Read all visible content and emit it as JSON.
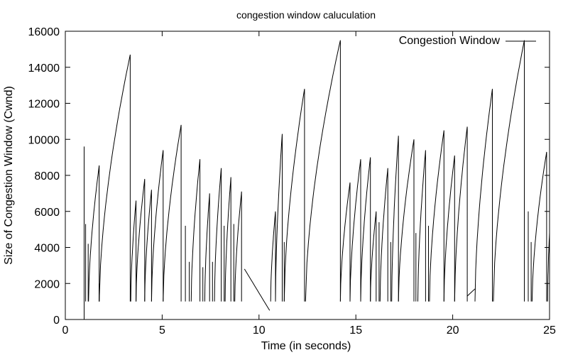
{
  "chart_data": {
    "type": "line",
    "title": "congestion window caluculation",
    "xlabel": "Time (in seconds)",
    "ylabel": "Size of Congestion Window (Cwnd)",
    "xlim": [
      0,
      25
    ],
    "ylim": [
      0,
      16000
    ],
    "xticks": [
      0,
      5,
      10,
      15,
      20,
      25
    ],
    "yticks": [
      0,
      2000,
      4000,
      6000,
      8000,
      10000,
      12000,
      14000,
      16000
    ],
    "grid": false,
    "legend_position": "top-right",
    "series": [
      {
        "name": "Congestion Window",
        "color": "#000000",
        "segments": [
          {
            "kind": "spike",
            "t": 0.97,
            "peak": 9600,
            "base": 0
          },
          {
            "kind": "spike",
            "t": 1.05,
            "peak": 5300,
            "base": 1000
          },
          {
            "kind": "spike",
            "t": 1.18,
            "peak": 4200,
            "base": 1000
          },
          {
            "kind": "ramp",
            "t0": 1.2,
            "t1": 1.75,
            "v0": 1000,
            "v1": 8550
          },
          {
            "kind": "spike",
            "t": 1.75,
            "peak": 2000,
            "base": 1000
          },
          {
            "kind": "ramp",
            "t0": 1.75,
            "t1": 3.35,
            "v0": 1000,
            "v1": 14700
          },
          {
            "kind": "ramp",
            "t0": 3.38,
            "t1": 3.65,
            "v0": 1000,
            "v1": 6600
          },
          {
            "kind": "ramp",
            "t0": 3.65,
            "t1": 4.1,
            "v0": 1000,
            "v1": 7800
          },
          {
            "kind": "ramp",
            "t0": 4.1,
            "t1": 4.45,
            "v0": 1000,
            "v1": 7200
          },
          {
            "kind": "ramp",
            "t0": 4.45,
            "t1": 5.05,
            "v0": 1000,
            "v1": 9400
          },
          {
            "kind": "ramp",
            "t0": 5.05,
            "t1": 5.98,
            "v0": 1000,
            "v1": 10800
          },
          {
            "kind": "spike",
            "t": 6.2,
            "peak": 5200,
            "base": 1000
          },
          {
            "kind": "spike",
            "t": 6.4,
            "peak": 3200,
            "base": 1000
          },
          {
            "kind": "ramp",
            "t0": 6.5,
            "t1": 6.95,
            "v0": 1000,
            "v1": 8900
          },
          {
            "kind": "spike",
            "t": 7.1,
            "peak": 2900,
            "base": 1000
          },
          {
            "kind": "ramp",
            "t0": 7.2,
            "t1": 7.45,
            "v0": 1000,
            "v1": 7000
          },
          {
            "kind": "spike",
            "t": 7.6,
            "peak": 3200,
            "base": 1000
          },
          {
            "kind": "ramp",
            "t0": 7.7,
            "t1": 8.05,
            "v0": 1000,
            "v1": 8400
          },
          {
            "kind": "spike",
            "t": 8.2,
            "peak": 5200,
            "base": 1000
          },
          {
            "kind": "ramp",
            "t0": 8.25,
            "t1": 8.55,
            "v0": 1000,
            "v1": 7900
          },
          {
            "kind": "spike",
            "t": 8.7,
            "peak": 5300,
            "base": 1000
          },
          {
            "kind": "ramp",
            "t0": 8.75,
            "t1": 9.1,
            "v0": 1000,
            "v1": 7100
          },
          {
            "kind": "decay",
            "t0": 9.25,
            "t1": 10.55,
            "v0": 2800,
            "v1": 500
          },
          {
            "kind": "ramp",
            "t0": 10.6,
            "t1": 10.85,
            "v0": 1000,
            "v1": 6000
          },
          {
            "kind": "ramp",
            "t0": 10.85,
            "t1": 11.2,
            "v0": 1000,
            "v1": 10300
          },
          {
            "kind": "spike",
            "t": 11.3,
            "peak": 4300,
            "base": 1000
          },
          {
            "kind": "ramp",
            "t0": 11.3,
            "t1": 12.35,
            "v0": 1000,
            "v1": 12800
          },
          {
            "kind": "ramp",
            "t0": 12.4,
            "t1": 14.2,
            "v0": 1000,
            "v1": 15500
          },
          {
            "kind": "ramp",
            "t0": 14.2,
            "t1": 14.7,
            "v0": 1000,
            "v1": 7600
          },
          {
            "kind": "ramp",
            "t0": 14.7,
            "t1": 15.25,
            "v0": 1000,
            "v1": 8900
          },
          {
            "kind": "ramp",
            "t0": 15.25,
            "t1": 15.75,
            "v0": 1000,
            "v1": 9000
          },
          {
            "kind": "ramp",
            "t0": 15.75,
            "t1": 16.05,
            "v0": 1000,
            "v1": 6000
          },
          {
            "kind": "spike",
            "t": 16.2,
            "peak": 5400,
            "base": 1000
          },
          {
            "kind": "ramp",
            "t0": 16.25,
            "t1": 16.65,
            "v0": 1000,
            "v1": 8400
          },
          {
            "kind": "spike",
            "t": 16.8,
            "peak": 4300,
            "base": 1000
          },
          {
            "kind": "ramp",
            "t0": 16.85,
            "t1": 17.2,
            "v0": 1000,
            "v1": 10200
          },
          {
            "kind": "ramp",
            "t0": 17.2,
            "t1": 18.0,
            "v0": 1000,
            "v1": 10000
          },
          {
            "kind": "spike",
            "t": 18.1,
            "peak": 4800,
            "base": 1000
          },
          {
            "kind": "ramp",
            "t0": 18.2,
            "t1": 18.6,
            "v0": 1000,
            "v1": 9400
          },
          {
            "kind": "spike",
            "t": 18.75,
            "peak": 5200,
            "base": 1000
          },
          {
            "kind": "ramp",
            "t0": 18.8,
            "t1": 19.55,
            "v0": 1000,
            "v1": 10500
          },
          {
            "kind": "ramp",
            "t0": 19.55,
            "t1": 20.1,
            "v0": 1000,
            "v1": 9100
          },
          {
            "kind": "ramp",
            "t0": 20.1,
            "t1": 20.75,
            "v0": 1000,
            "v1": 10700
          },
          {
            "kind": "decay",
            "t0": 20.75,
            "t1": 21.15,
            "v0": 1300,
            "v1": 1700
          },
          {
            "kind": "ramp",
            "t0": 21.15,
            "t1": 22.05,
            "v0": 1000,
            "v1": 12800
          },
          {
            "kind": "ramp",
            "t0": 22.1,
            "t1": 23.7,
            "v0": 1000,
            "v1": 15500
          },
          {
            "kind": "spike",
            "t": 23.9,
            "peak": 6000,
            "base": 1000
          },
          {
            "kind": "spike",
            "t": 24.05,
            "peak": 4300,
            "base": 1000
          },
          {
            "kind": "ramp",
            "t0": 24.1,
            "t1": 24.85,
            "v0": 1000,
            "v1": 9300
          },
          {
            "kind": "ramp",
            "t0": 24.9,
            "t1": 25.0,
            "v0": 1000,
            "v1": 4800
          }
        ]
      }
    ]
  }
}
